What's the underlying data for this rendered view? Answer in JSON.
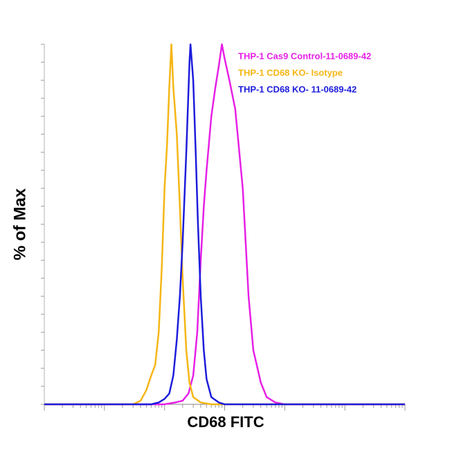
{
  "chart_data": {
    "type": "line",
    "xlabel": "CD68 FITC",
    "ylabel": "% of Max",
    "xscale": "log",
    "xlim": [
      1,
      1000000
    ],
    "ylim": [
      0,
      100
    ],
    "xticks": [
      1,
      2,
      3,
      4,
      5,
      6,
      7,
      8,
      9,
      10,
      20,
      30,
      40,
      50,
      60,
      70,
      80,
      90,
      100,
      200,
      300,
      400,
      500,
      600,
      700,
      800,
      900,
      1000,
      2000,
      3000,
      4000,
      5000,
      6000,
      7000,
      8000,
      9000,
      10000,
      20000,
      30000,
      40000,
      50000,
      60000,
      70000,
      80000,
      90000,
      100000,
      200000,
      300000,
      400000,
      500000,
      600000,
      700000,
      800000,
      900000,
      1000000
    ],
    "yticks": [
      0,
      5,
      10,
      15,
      20,
      25,
      30,
      35,
      40,
      45,
      50,
      55,
      60,
      65,
      70,
      75,
      80,
      85,
      90,
      95,
      100
    ],
    "tick_labels": false,
    "legend": "upper right",
    "series": [
      {
        "name": "THP-1 Cas9 Control-11-0689-42",
        "color": "#e620e6",
        "x": [
          1,
          100,
          150,
          200,
          250,
          300,
          350,
          400,
          450,
          500,
          600,
          700,
          800,
          900,
          1000,
          1200,
          1500,
          2000,
          2500,
          3000,
          4000,
          5000,
          7000,
          10000,
          1000000
        ],
        "values": [
          0,
          0,
          0.5,
          1,
          3,
          8,
          20,
          40,
          55,
          65,
          80,
          88,
          94,
          100,
          96,
          90,
          82,
          60,
          30,
          15,
          6,
          2,
          0.5,
          0,
          0
        ]
      },
      {
        "name": "THP-1 CD68 KO- Isotype",
        "color": "#f5b614",
        "x": [
          1,
          30,
          40,
          50,
          60,
          70,
          80,
          90,
          100,
          110,
          120,
          130,
          140,
          160,
          180,
          200,
          230,
          260,
          300,
          400,
          600,
          1000000
        ],
        "values": [
          0,
          0,
          1,
          4,
          8,
          11,
          20,
          38,
          60,
          72,
          88,
          100,
          88,
          75,
          55,
          35,
          15,
          6,
          2,
          0.5,
          0,
          0
        ]
      },
      {
        "name": "THP-1 CD68 KO- 11-0689-42",
        "color": "#1c1cdc",
        "x": [
          1,
          60,
          80,
          100,
          120,
          140,
          160,
          180,
          200,
          230,
          260,
          270,
          300,
          330,
          360,
          400,
          450,
          500,
          600,
          800,
          1000,
          1000000
        ],
        "values": [
          0,
          0,
          0.5,
          1.5,
          3,
          8,
          18,
          30,
          45,
          70,
          95,
          100,
          90,
          70,
          50,
          30,
          15,
          7,
          2,
          0.5,
          0,
          0
        ]
      }
    ]
  }
}
